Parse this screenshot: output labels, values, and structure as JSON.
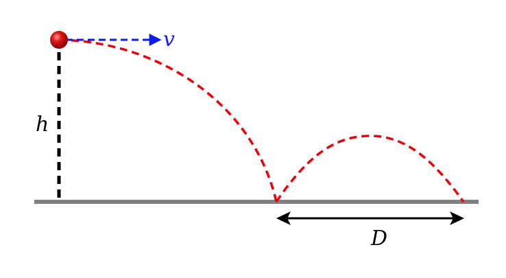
{
  "diagram": {
    "labels": {
      "velocity": "v",
      "height": "h",
      "distance": "D"
    },
    "colors": {
      "ball": "#c40000",
      "ball_highlight": "#ff8a8a",
      "trajectory": "#e8000b",
      "velocity_arrow": "#0b1bf0",
      "velocity_label": "#1a1aff",
      "ground": "#808080",
      "height_marker": "#000000",
      "distance_arrow": "#000000",
      "label_text": "#000000"
    }
  }
}
